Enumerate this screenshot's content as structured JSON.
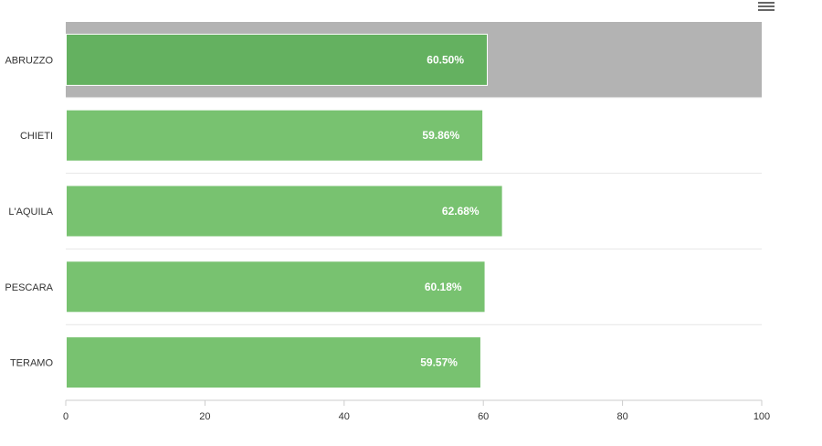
{
  "chart_data": {
    "type": "bar",
    "orientation": "horizontal",
    "categories": [
      "ABRUZZO",
      "CHIETI",
      "L'AQUILA",
      "PESCARA",
      "TERAMO"
    ],
    "values": [
      60.5,
      59.86,
      62.68,
      60.18,
      59.57
    ],
    "data_labels": [
      "60.50%",
      "59.86%",
      "62.68%",
      "60.18%",
      "59.57%"
    ],
    "highlighted_category": "ABRUZZO",
    "xlim": [
      0,
      100
    ],
    "x_ticks": [
      "0",
      "20",
      "40",
      "60",
      "80",
      "100"
    ],
    "grid": true,
    "title": "",
    "xlabel": "",
    "ylabel": ""
  },
  "colors": {
    "bar": "#78c270",
    "bar_highlight": "#64b160",
    "highlight_band": "#b3b3b3",
    "grid": "#e6e6e6",
    "axis": "#cccccc",
    "menu_icon": "#666666"
  },
  "toolbar": {
    "menu_icon": "hamburger-menu-icon"
  }
}
